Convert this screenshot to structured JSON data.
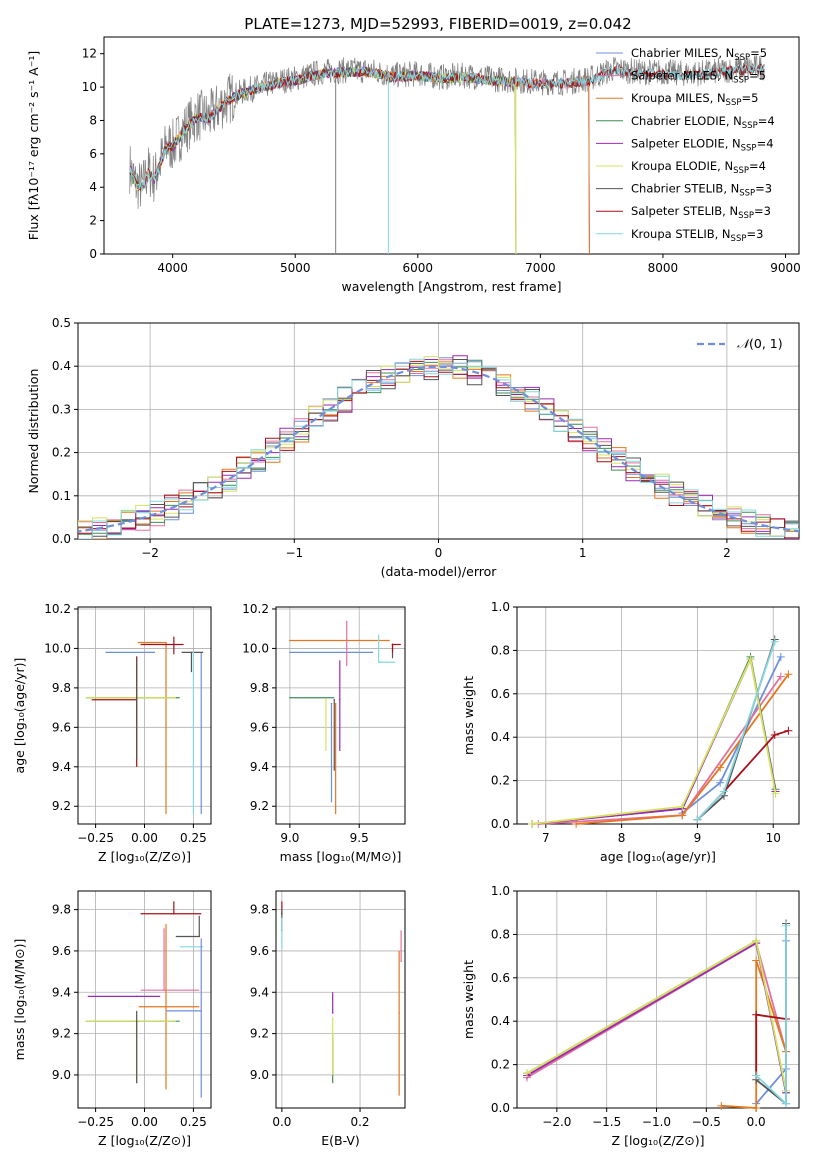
{
  "figure": {
    "title": "PLATE=1273, MJD=52993, FIBERID=0019, z=0.042"
  },
  "colors": [
    "#6f8fdc",
    "#e5709f",
    "#e5771e",
    "#3e8e55",
    "#9b28b4",
    "#d6e35e",
    "#555555",
    "#a6101a",
    "#84d8df"
  ],
  "chart_data": [
    {
      "id": "spectrum",
      "type": "line",
      "xlabel": "wavelength [Angstrom, rest frame]",
      "ylabel": "Flux [fλ10⁻¹⁷ erg cm⁻² s⁻¹ A⁻¹]",
      "xlim": [
        3440,
        9110
      ],
      "ylim": [
        0,
        13
      ],
      "xticks": [
        4000,
        5000,
        6000,
        7000,
        8000,
        9000
      ],
      "yticks": [
        0,
        2,
        4,
        6,
        8,
        10,
        12
      ],
      "grid": false,
      "legend_position": "right",
      "data_continuum": {
        "x": [
          3650,
          3700,
          3750,
          3800,
          3850,
          3900,
          3950,
          4000,
          4100,
          4200,
          4300,
          4400,
          4500,
          4600,
          4700,
          4800,
          4900,
          5000,
          5200,
          5400,
          5600,
          5800,
          6000,
          6200,
          6400,
          6600,
          6800,
          7000,
          7200,
          7400,
          7600,
          7800,
          8000,
          8200,
          8400,
          8600,
          8830
        ],
        "y": [
          5.2,
          4.2,
          4.0,
          5.0,
          4.5,
          5.5,
          6.5,
          6.5,
          7.5,
          8.3,
          8.2,
          9.0,
          9.5,
          9.8,
          10.0,
          10.2,
          10.4,
          10.5,
          10.9,
          11.0,
          11.0,
          10.7,
          10.8,
          10.6,
          10.7,
          10.5,
          10.4,
          10.3,
          10.3,
          10.5,
          11.1,
          10.9,
          10.9,
          10.8,
          10.9,
          11.1,
          11.2
        ]
      },
      "series": [
        {
          "name": "Chabrier MILES, N$_{SSP}$=5",
          "end": 7400
        },
        {
          "name": "Salpeter MILES, N$_{SSP}$=5",
          "end": 7400
        },
        {
          "name": "Kroupa MILES, N$_{SSP}$=5",
          "end": 7400
        },
        {
          "name": "Chabrier ELODIE, N$_{SSP}$=4",
          "end": 6800
        },
        {
          "name": "Salpeter ELODIE, N$_{SSP}$=4",
          "end": 6800
        },
        {
          "name": "Kroupa ELODIE, N$_{SSP}$=4",
          "end": 6800
        },
        {
          "name": "Chabrier STELIB, N$_{SSP}$=3",
          "end": 8830
        },
        {
          "name": "Salpeter STELIB, N$_{SSP}$=3",
          "end": 8830
        },
        {
          "name": "Kroupa STELIB, N$_{SSP}$=3",
          "end": 8830
        }
      ]
    },
    {
      "id": "residuals",
      "type": "line",
      "xlabel": "(data-model)/error",
      "ylabel": "Normed distribution",
      "xlim": [
        -2.5,
        2.5
      ],
      "ylim": [
        0,
        0.5
      ],
      "xticks": [
        -2,
        -1,
        0,
        1,
        2
      ],
      "yticks": [
        0.0,
        0.1,
        0.2,
        0.3,
        0.4,
        0.5
      ],
      "grid": true,
      "legend_position": "top-right",
      "reference": {
        "name": "N(0,1)",
        "label_prefix": "𝒩",
        "label_suffix": "(0, 1)",
        "color": "#6f8fdc"
      },
      "bin_width": 0.1
    },
    {
      "id": "age_vs_Z",
      "type": "scatter",
      "xlabel": "Z [log₁₀(Z/Z⊙)]",
      "ylabel": "age  [log₁₀(age/yr)]",
      "xlim": [
        -0.34,
        0.34
      ],
      "ylim": [
        9.11,
        10.21
      ],
      "xticks": [
        -0.25,
        0.0,
        0.25
      ],
      "xticklabels": [
        "−0.25",
        "0.00",
        "0.25"
      ],
      "yticks": [
        9.2,
        9.4,
        9.6,
        9.8,
        10.0,
        10.2
      ],
      "grid": true,
      "points": [
        {
          "series": 0,
          "x": 0.05,
          "xerr": [
            0.25,
            0.0
          ],
          "y": 9.98,
          "yerr": [
            0.0,
            0.0
          ]
        },
        {
          "series": 0,
          "x": 0.29,
          "xerr": [
            0.0,
            0.0
          ],
          "y": 9.98,
          "yerr": [
            0.82,
            0.0
          ]
        },
        {
          "series": 2,
          "x": -0.03,
          "xerr": [
            0.0,
            0.0
          ],
          "y": 10.03,
          "yerr": [
            0.0,
            0.0
          ]
        },
        {
          "series": 2,
          "x": 0.11,
          "xerr": [
            0.14,
            0.0
          ],
          "y": 10.03,
          "yerr": [
            0.87,
            0.0
          ]
        },
        {
          "series": 7,
          "x": 0.15,
          "xerr": [
            0.17,
            0.05
          ],
          "y": 10.02,
          "yerr": [
            0.05,
            0.04
          ]
        },
        {
          "series": 6,
          "x": 0.24,
          "xerr": [
            0.05,
            0.06
          ],
          "y": 9.98,
          "yerr": [
            0.1,
            0.0
          ]
        },
        {
          "series": 8,
          "x": 0.25,
          "xerr": [
            0.0,
            0.0
          ],
          "y": 9.98,
          "yerr": [
            0.82,
            0.0
          ]
        },
        {
          "series": 3,
          "x": -0.04,
          "xerr": [
            0.26,
            0.22
          ],
          "y": 9.75,
          "yerr": [
            0.0,
            0.0
          ]
        },
        {
          "series": 5,
          "x": -0.04,
          "xerr": [
            0.26,
            0.2
          ],
          "y": 9.75,
          "yerr": [
            0.35,
            0.2
          ]
        },
        {
          "series": 7,
          "x": -0.04,
          "xerr": [
            0.23,
            0.0
          ],
          "y": 9.74,
          "yerr": [
            0.34,
            0.22
          ]
        },
        {
          "series": 6,
          "x": -0.04,
          "xerr": [
            0.0,
            0.0
          ],
          "y": 9.74,
          "yerr": [
            0.3,
            0.21
          ]
        }
      ]
    },
    {
      "id": "age_vs_mass",
      "type": "scatter",
      "xlabel": "mass [log₁₀(M/M⊙)]",
      "ylabel": "",
      "xlim": [
        8.9,
        9.83
      ],
      "ylim": [
        9.11,
        10.21
      ],
      "xticks": [
        9.0,
        9.5
      ],
      "xticklabels": [
        "9.0",
        "9.5"
      ],
      "yticks": [
        9.2,
        9.4,
        9.6,
        9.8,
        10.0,
        10.2
      ],
      "grid": true,
      "points": [
        {
          "series": 0,
          "x": 9.0,
          "xerr": [
            0.0,
            0.6
          ],
          "y": 9.98,
          "yerr": [
            0.0,
            0.0
          ]
        },
        {
          "series": 2,
          "x": 9.0,
          "xerr": [
            0.0,
            0.72
          ],
          "y": 10.04,
          "yerr": [
            0.0,
            0.0
          ]
        },
        {
          "series": 1,
          "x": 9.41,
          "xerr": [
            0.0,
            0.0
          ],
          "y": 10.0,
          "yerr": [
            0.09,
            0.14
          ]
        },
        {
          "series": 8,
          "x": 9.64,
          "xerr": [
            0.0,
            0.12
          ],
          "y": 9.93,
          "yerr": [
            0.0,
            0.14
          ]
        },
        {
          "series": 6,
          "x": 9.74,
          "xerr": [
            0.0,
            0.0
          ],
          "y": 10.02,
          "yerr": [
            0.07,
            0.0
          ]
        },
        {
          "series": 7,
          "x": 9.74,
          "xerr": [
            0.0,
            0.06
          ],
          "y": 10.02,
          "yerr": [
            0.04,
            0.0
          ]
        },
        {
          "series": 3,
          "x": 9.0,
          "xerr": [
            0.0,
            0.32
          ],
          "y": 9.75,
          "yerr": [
            0.0,
            0.0
          ]
        },
        {
          "series": 4,
          "x": 9.36,
          "xerr": [
            0.0,
            0.0
          ],
          "y": 9.74,
          "yerr": [
            0.26,
            0.2
          ]
        },
        {
          "series": 5,
          "x": 9.26,
          "xerr": [
            0.0,
            0.0
          ],
          "y": 9.74,
          "yerr": [
            0.26,
            0.0
          ]
        },
        {
          "series": 0,
          "x": 9.3,
          "xerr": [
            0.0,
            0.0
          ],
          "y": 9.72,
          "yerr": [
            0.5,
            0.0
          ]
        },
        {
          "series": 2,
          "x": 9.33,
          "xerr": [
            0.0,
            0.0
          ],
          "y": 9.72,
          "yerr": [
            0.56,
            0.0
          ]
        },
        {
          "series": 6,
          "x": 9.32,
          "xerr": [
            0.0,
            0.0
          ],
          "y": 9.74,
          "yerr": [
            0.36,
            0.0
          ]
        }
      ]
    },
    {
      "id": "weight_vs_age",
      "type": "line",
      "xlabel": "age  [log₁₀(age/yr)]",
      "ylabel": "mass weight",
      "xlim": [
        6.62,
        10.34
      ],
      "ylim": [
        0,
        1.0
      ],
      "xticks": [
        7,
        8,
        9,
        10
      ],
      "yticks": [
        0.0,
        0.2,
        0.4,
        0.6,
        0.8,
        1.0
      ],
      "grid": true,
      "series": [
        {
          "color_index": 0,
          "x": [
            8.8,
            9.3,
            10.1
          ],
          "y": [
            0.05,
            0.19,
            0.77
          ]
        },
        {
          "color_index": 1,
          "x": [
            6.9,
            8.8,
            10.1
          ],
          "y": [
            0.0,
            0.04,
            0.68
          ]
        },
        {
          "color_index": 2,
          "x": [
            7.4,
            8.8,
            9.3,
            10.2
          ],
          "y": [
            0.0,
            0.04,
            0.26,
            0.69
          ]
        },
        {
          "color_index": 3,
          "x": [
            6.82,
            8.8,
            9.7,
            10.03
          ],
          "y": [
            0.0,
            0.07,
            0.77,
            0.16
          ]
        },
        {
          "color_index": 4,
          "x": [
            6.82,
            8.8,
            9.7,
            10.03
          ],
          "y": [
            0.0,
            0.07,
            0.76,
            0.15
          ]
        },
        {
          "color_index": 5,
          "x": [
            6.82,
            8.8,
            9.7,
            10.03
          ],
          "y": [
            0.0,
            0.08,
            0.76,
            0.14
          ]
        },
        {
          "color_index": 6,
          "x": [
            9.0,
            9.35,
            10.02
          ],
          "y": [
            0.02,
            0.13,
            0.85
          ]
        },
        {
          "color_index": 7,
          "x": [
            9.0,
            9.35,
            10.02,
            10.2
          ],
          "y": [
            0.02,
            0.15,
            0.41,
            0.43
          ]
        },
        {
          "color_index": 8,
          "x": [
            9.0,
            9.35,
            10.02
          ],
          "y": [
            0.02,
            0.15,
            0.84
          ]
        }
      ]
    },
    {
      "id": "mass_vs_Z",
      "type": "scatter",
      "xlabel": "Z [log₁₀(Z/Z⊙)]",
      "ylabel": "mass [log₁₀(M/M⊙)]",
      "xlim": [
        -0.34,
        0.34
      ],
      "ylim": [
        8.84,
        9.89
      ],
      "xticks": [
        -0.25,
        0.0,
        0.25
      ],
      "xticklabels": [
        "−0.25",
        "0.00",
        "0.25"
      ],
      "yticks": [
        9.0,
        9.2,
        9.4,
        9.6,
        9.8
      ],
      "grid": true,
      "points": [
        {
          "series": 7,
          "x": 0.15,
          "xerr": [
            0.17,
            0.14
          ],
          "y": 9.78,
          "yerr": [
            0.0,
            0.06
          ]
        },
        {
          "series": 6,
          "x": 0.28,
          "xerr": [
            0.12,
            0.0
          ],
          "y": 9.67,
          "yerr": [
            0.0,
            0.1
          ]
        },
        {
          "series": 8,
          "x": 0.25,
          "xerr": [
            0.07,
            0.05
          ],
          "y": 9.62,
          "yerr": [
            0.0,
            0.0
          ]
        },
        {
          "series": 4,
          "x": -0.04,
          "xerr": [
            0.25,
            0.12
          ],
          "y": 9.38,
          "yerr": [
            0.0,
            0.0
          ]
        },
        {
          "series": 1,
          "x": 0.1,
          "xerr": [
            0.12,
            0.18
          ],
          "y": 9.41,
          "yerr": [
            0.0,
            0.3
          ]
        },
        {
          "series": 2,
          "x": 0.11,
          "xerr": [
            0.14,
            0.17
          ],
          "y": 9.33,
          "yerr": [
            0.4,
            0.4
          ]
        },
        {
          "series": 0,
          "x": 0.29,
          "xerr": [
            0.18,
            0.0
          ],
          "y": 9.31,
          "yerr": [
            0.42,
            0.35
          ]
        },
        {
          "series": 3,
          "x": -0.04,
          "xerr": [
            0.26,
            0.22
          ],
          "y": 9.26,
          "yerr": [
            0.3,
            0.0
          ]
        },
        {
          "series": 5,
          "x": -0.04,
          "xerr": [
            0.26,
            0.2
          ],
          "y": 9.26,
          "yerr": [
            0.3,
            0.0
          ]
        },
        {
          "series": 6,
          "x": -0.04,
          "xerr": [
            0.0,
            0.0
          ],
          "y": 9.26,
          "yerr": [
            0.3,
            0.05
          ]
        }
      ]
    },
    {
      "id": "mass_vs_EBV",
      "type": "scatter",
      "xlabel": "E(B-V)",
      "ylabel": "",
      "xlim": [
        -0.015,
        0.315
      ],
      "ylim": [
        8.84,
        9.89
      ],
      "xticks": [
        0.0,
        0.2
      ],
      "xticklabels": [
        "0.0",
        "0.2"
      ],
      "yticks": [
        9.0,
        9.2,
        9.4,
        9.6,
        9.8
      ],
      "grid": true,
      "points": [
        {
          "series": 7,
          "x": 0.0,
          "xerr": [
            0.0,
            0.0
          ],
          "y": 9.78,
          "yerr": [
            0.0,
            0.06
          ]
        },
        {
          "series": 6,
          "x": 0.0,
          "xerr": [
            0.0,
            0.0
          ],
          "y": 9.7,
          "yerr": [
            0.0,
            0.1
          ]
        },
        {
          "series": 8,
          "x": 0.0,
          "xerr": [
            0.0,
            0.0
          ],
          "y": 9.66,
          "yerr": [
            0.05,
            0.1
          ]
        },
        {
          "series": 4,
          "x": 0.13,
          "xerr": [
            0.0,
            0.0
          ],
          "y": 9.3,
          "yerr": [
            0.0,
            0.1
          ]
        },
        {
          "series": 3,
          "x": 0.13,
          "xerr": [
            0.0,
            0.0
          ],
          "y": 9.2,
          "yerr": [
            0.24,
            0.0
          ]
        },
        {
          "series": 5,
          "x": 0.13,
          "xerr": [
            0.0,
            0.0
          ],
          "y": 9.2,
          "yerr": [
            0.2,
            0.08
          ]
        },
        {
          "series": 2,
          "x": 0.3,
          "xerr": [
            0.0,
            0.0
          ],
          "y": 9.3,
          "yerr": [
            0.4,
            0.3
          ]
        },
        {
          "series": 1,
          "x": 0.305,
          "xerr": [
            0.0,
            0.0
          ],
          "y": 9.55,
          "yerr": [
            0.0,
            0.15
          ]
        }
      ]
    },
    {
      "id": "weight_vs_Z",
      "type": "line",
      "xlabel": "Z [log₁₀(Z/Z⊙)]",
      "ylabel": "mass weight",
      "xlim": [
        -2.4,
        0.43
      ],
      "ylim": [
        0,
        1.0
      ],
      "xticks": [
        -2.0,
        -1.5,
        -1.0,
        -0.5,
        0.0
      ],
      "xticklabels": [
        "−2.0",
        "−1.5",
        "−1.0",
        "−0.5",
        "0.0"
      ],
      "yticks": [
        0.0,
        0.2,
        0.4,
        0.6,
        0.8,
        1.0
      ],
      "grid": true,
      "series": [
        {
          "color_index": 0,
          "x": [
            0.0,
            0.3,
            0.3
          ],
          "y": [
            0.02,
            0.18,
            0.77
          ]
        },
        {
          "color_index": 1,
          "x": [
            -2.3,
            0.0,
            0.3
          ],
          "y": [
            0.14,
            0.76,
            0.26
          ]
        },
        {
          "color_index": 2,
          "x": [
            -0.35,
            0.0,
            0.0,
            0.3
          ],
          "y": [
            0.01,
            0.0,
            0.68,
            0.26
          ]
        },
        {
          "color_index": 3,
          "x": [
            -2.3,
            0.0,
            0.3
          ],
          "y": [
            0.16,
            0.77,
            0.07
          ]
        },
        {
          "color_index": 4,
          "x": [
            -2.3,
            0.0,
            0.3
          ],
          "y": [
            0.15,
            0.76,
            0.07
          ]
        },
        {
          "color_index": 5,
          "x": [
            -2.3,
            0.0,
            0.3
          ],
          "y": [
            0.16,
            0.77,
            0.08
          ]
        },
        {
          "color_index": 6,
          "x": [
            0.0,
            0.3,
            0.3
          ],
          "y": [
            0.13,
            0.02,
            0.85
          ]
        },
        {
          "color_index": 7,
          "x": [
            0.0,
            0.0,
            0.3
          ],
          "y": [
            0.15,
            0.43,
            0.41
          ]
        },
        {
          "color_index": 8,
          "x": [
            0.0,
            0.3,
            0.3
          ],
          "y": [
            0.15,
            0.02,
            0.84
          ]
        }
      ]
    }
  ]
}
